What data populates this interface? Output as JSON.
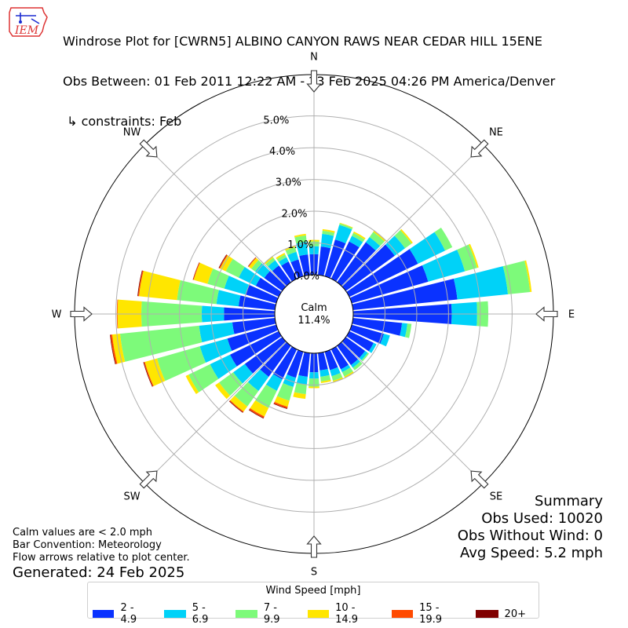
{
  "logo_text": "IEM",
  "title": {
    "line1": "Windrose Plot for [CWRN5] ALBINO CANYON RAWS NEAR CEDAR HILL 15ENE",
    "line2": "Obs Between: 01 Feb 2011 12:22 AM - 23 Feb 2025 04:26 PM America/Denver",
    "line3": " ↳ constraints: Feb"
  },
  "notes": {
    "calm_note": "Calm values are < 2.0 mph",
    "bar_convention": "Bar Convention: Meteorology",
    "flow_note": "Flow arrows relative to plot center.",
    "generated": "Generated: 24 Feb 2025"
  },
  "summary": {
    "heading": "Summary",
    "obs_used": "Obs Used: 10020",
    "obs_without_wind": "Obs Without Wind: 0",
    "avg_speed": "Avg Speed: 5.2 mph"
  },
  "chart_data": {
    "type": "windrose",
    "radial_unit": "%",
    "r_ticks": [
      0,
      1,
      2,
      3,
      4,
      5
    ],
    "r_tick_labels": [
      "0.0%",
      "1.0%",
      "2.0%",
      "3.0%",
      "4.0%",
      "5.0%"
    ],
    "r_max": 6.3,
    "calm_label": "Calm",
    "calm_value": "11.4%",
    "compass_labels": [
      "N",
      "NE",
      "E",
      "SE",
      "S",
      "SW",
      "W",
      "NW"
    ],
    "legend_title": "Wind Speed [mph]",
    "bins": [
      {
        "name": "2 - 4.9",
        "color": "#0a32ff"
      },
      {
        "name": "5 - 6.9",
        "color": "#00d2f8"
      },
      {
        "name": "7 - 9.9",
        "color": "#7dfa7a"
      },
      {
        "name": "10 - 14.9",
        "color": "#ffe600"
      },
      {
        "name": "15 - 19.9",
        "color": "#ff4a00"
      },
      {
        "name": "20+",
        "color": "#800000"
      }
    ],
    "directions_deg": [
      0,
      10,
      20,
      30,
      40,
      50,
      60,
      70,
      80,
      90,
      100,
      110,
      120,
      130,
      140,
      150,
      160,
      170,
      180,
      190,
      200,
      210,
      220,
      230,
      240,
      250,
      260,
      270,
      280,
      290,
      300,
      310,
      320,
      330,
      340,
      350
    ],
    "cumulative": [
      [
        0.65,
        0.9,
        1.05,
        1.1,
        1.1,
        1.1
      ],
      [
        0.9,
        1.3,
        1.4,
        1.45,
        1.45,
        1.45
      ],
      [
        1.2,
        1.68,
        1.73,
        1.75,
        1.75,
        1.75
      ],
      [
        1.3,
        1.5,
        1.6,
        1.65,
        1.65,
        1.65
      ],
      [
        1.55,
        1.75,
        1.95,
        2.0,
        2.0,
        2.0
      ],
      [
        1.9,
        2.3,
        2.55,
        2.6,
        2.6,
        2.6
      ],
      [
        2.4,
        3.35,
        3.6,
        3.6,
        3.6,
        3.6
      ],
      [
        2.5,
        3.7,
        4.1,
        4.15,
        4.15,
        4.15
      ],
      [
        3.3,
        4.9,
        5.6,
        5.65,
        5.65,
        5.65
      ],
      [
        3.1,
        3.9,
        4.25,
        4.25,
        4.25,
        4.25
      ],
      [
        1.55,
        1.72,
        1.85,
        1.85,
        1.85,
        1.85
      ],
      [
        1.05,
        1.25,
        1.25,
        1.25,
        1.25,
        1.25
      ],
      [
        0.85,
        0.95,
        0.95,
        0.95,
        0.95,
        0.95
      ],
      [
        0.75,
        0.85,
        0.9,
        0.9,
        0.9,
        0.9
      ],
      [
        0.75,
        0.85,
        0.95,
        0.95,
        0.95,
        0.95
      ],
      [
        0.7,
        0.8,
        0.95,
        1.0,
        1.0,
        1.0
      ],
      [
        0.6,
        0.8,
        0.95,
        1.0,
        1.0,
        1.0
      ],
      [
        0.55,
        0.75,
        0.9,
        0.95,
        0.95,
        0.95
      ],
      [
        0.6,
        0.8,
        1.05,
        1.1,
        1.1,
        1.1
      ],
      [
        0.75,
        1.0,
        1.3,
        1.45,
        1.45,
        1.45
      ],
      [
        0.85,
        1.15,
        1.6,
        1.8,
        1.85,
        1.87
      ],
      [
        1.05,
        1.45,
        2.05,
        2.35,
        2.4,
        2.42
      ],
      [
        1.2,
        1.75,
        2.35,
        2.55,
        2.58,
        2.6
      ],
      [
        1.45,
        1.9,
        2.45,
        2.6,
        2.6,
        2.6
      ],
      [
        1.7,
        2.4,
        3.15,
        3.25,
        3.25,
        3.25
      ],
      [
        1.6,
        2.5,
        3.9,
        4.3,
        4.33,
        4.35
      ],
      [
        1.35,
        2.4,
        4.9,
        5.15,
        5.2,
        5.22
      ],
      [
        1.6,
        2.3,
        4.2,
        4.95,
        4.97,
        4.97
      ],
      [
        1.15,
        1.85,
        3.1,
        4.3,
        4.33,
        4.35
      ],
      [
        1.0,
        1.7,
        2.25,
        2.7,
        2.72,
        2.73
      ],
      [
        0.8,
        1.4,
        1.85,
        2.05,
        2.08,
        2.1
      ],
      [
        0.7,
        1.05,
        1.2,
        1.3,
        1.32,
        1.33
      ],
      [
        0.65,
        0.85,
        0.95,
        1.0,
        1.0,
        1.0
      ],
      [
        0.6,
        0.75,
        0.85,
        0.9,
        0.9,
        0.9
      ],
      [
        0.55,
        0.8,
        0.95,
        1.0,
        1.0,
        1.0
      ],
      [
        0.65,
        1.05,
        1.25,
        1.3,
        1.3,
        1.3
      ]
    ]
  }
}
